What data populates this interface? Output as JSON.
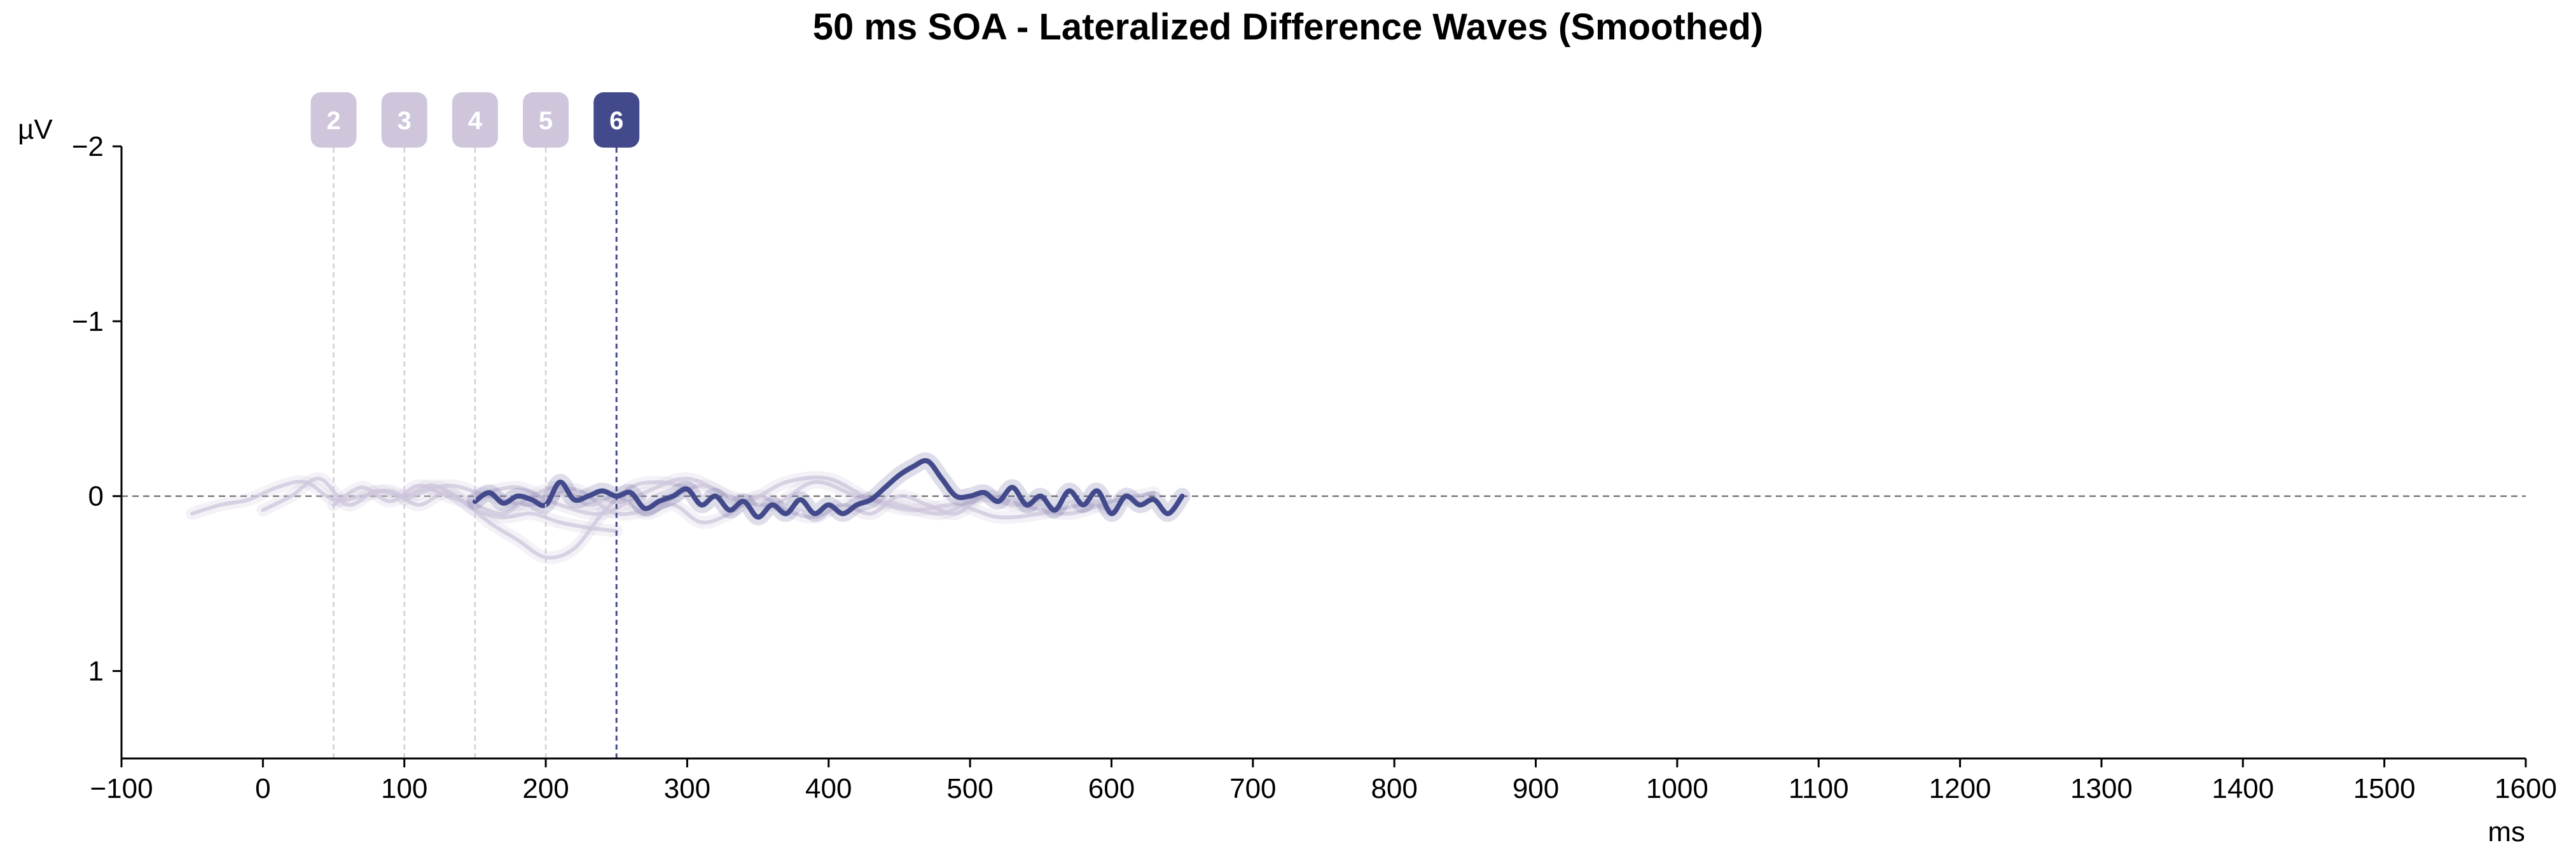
{
  "chart_data": {
    "type": "line",
    "title": "50 ms SOA - Lateralized Difference Waves (Smoothed)",
    "xlabel": "ms",
    "ylabel": "µV",
    "xlim": [
      -100,
      1600
    ],
    "ylim": [
      1.5,
      -2
    ],
    "y_inverted": true,
    "x_ticks": [
      -100,
      0,
      100,
      200,
      300,
      400,
      500,
      600,
      700,
      800,
      900,
      1000,
      1100,
      1200,
      1300,
      1400,
      1500,
      1600
    ],
    "x_tick_labels": [
      "−100",
      "0",
      "100",
      "200",
      "300",
      "400",
      "500",
      "600",
      "700",
      "800",
      "900",
      "1000",
      "1100",
      "1200",
      "1300",
      "1400",
      "1500",
      "1600"
    ],
    "y_ticks": [
      -2,
      -1,
      0,
      1
    ],
    "y_tick_labels": [
      "−2",
      "−1",
      "0",
      "1"
    ],
    "zero_line": true,
    "grid": false,
    "highlight_color": "#434a8c",
    "faded_color": "#cfc6dc",
    "markers": [
      {
        "label": "2",
        "x": 50,
        "active": false
      },
      {
        "label": "3",
        "x": 100,
        "active": false
      },
      {
        "label": "4",
        "x": 150,
        "active": false
      },
      {
        "label": "5",
        "x": 200,
        "active": false
      },
      {
        "label": "6",
        "x": 250,
        "active": true
      }
    ],
    "series": [
      {
        "highlight": false,
        "x": [
          -50,
          -30,
          -10,
          10,
          30,
          50,
          70,
          90,
          110,
          130,
          150,
          170,
          190,
          210,
          230,
          250
        ],
        "y": [
          0.1,
          0.05,
          0.02,
          -0.05,
          -0.08,
          0.02,
          0.0,
          -0.03,
          0.05,
          -0.02,
          0.08,
          0.12,
          0.1,
          0.15,
          0.18,
          0.2
        ]
      },
      {
        "highlight": false,
        "x": [
          0,
          20,
          40,
          60,
          80,
          100,
          120,
          140,
          160,
          180,
          200,
          220,
          240,
          260,
          280,
          300
        ],
        "y": [
          0.08,
          0.0,
          -0.1,
          0.05,
          -0.03,
          0.0,
          -0.06,
          0.02,
          0.15,
          0.25,
          0.35,
          0.3,
          0.1,
          -0.05,
          -0.08,
          -0.05
        ]
      },
      {
        "highlight": false,
        "x": [
          50,
          70,
          90,
          110,
          130,
          150,
          170,
          190,
          210,
          230,
          250,
          270,
          290,
          310,
          330,
          350,
          370,
          390,
          410,
          430,
          450,
          470,
          490,
          510,
          530,
          550
        ],
        "y": [
          0.05,
          -0.05,
          0.03,
          -0.06,
          0.0,
          0.05,
          0.1,
          0.0,
          -0.05,
          0.05,
          0.0,
          0.1,
          0.05,
          0.15,
          0.1,
          0.0,
          0.08,
          0.12,
          0.05,
          0.1,
          0.0,
          0.05,
          0.1,
          0.0,
          0.05,
          0.02
        ]
      },
      {
        "highlight": false,
        "x": [
          100,
          130,
          160,
          190,
          220,
          250,
          280,
          310,
          340,
          370,
          400,
          430,
          460,
          490,
          520,
          550,
          580,
          600
        ],
        "y": [
          0.02,
          -0.06,
          0.0,
          0.05,
          -0.04,
          0.1,
          0.05,
          -0.06,
          0.03,
          -0.08,
          -0.1,
          0.02,
          0.08,
          0.05,
          0.12,
          0.1,
          0.05,
          0.08
        ]
      },
      {
        "highlight": false,
        "x": [
          150,
          180,
          210,
          240,
          270,
          300,
          330,
          360,
          390,
          420,
          450,
          480,
          510,
          540,
          570,
          600,
          630
        ],
        "y": [
          0.0,
          -0.05,
          0.05,
          0.1,
          -0.02,
          -0.1,
          0.0,
          0.05,
          -0.08,
          0.0,
          0.05,
          0.1,
          0.0,
          0.06,
          0.1,
          0.03,
          -0.02
        ]
      },
      {
        "highlight": true,
        "x": [
          150,
          160,
          170,
          180,
          190,
          200,
          210,
          220,
          230,
          240,
          250,
          260,
          270,
          280,
          290,
          300,
          310,
          320,
          330,
          340,
          350,
          360,
          370,
          380,
          390,
          400,
          410,
          420,
          430,
          440,
          450,
          460,
          470,
          480,
          490,
          500,
          510,
          520,
          530,
          540,
          550,
          560,
          570,
          580,
          590,
          600,
          610,
          620,
          630,
          640,
          650
        ],
        "y": [
          0.03,
          -0.02,
          0.04,
          0.0,
          0.02,
          0.05,
          -0.08,
          0.02,
          0.0,
          -0.03,
          0.0,
          -0.02,
          0.07,
          0.03,
          0.0,
          -0.04,
          0.05,
          0.0,
          0.08,
          0.03,
          0.12,
          0.05,
          0.1,
          0.02,
          0.1,
          0.05,
          0.1,
          0.05,
          0.02,
          -0.05,
          -0.12,
          -0.17,
          -0.2,
          -0.1,
          0.0,
          0.0,
          -0.02,
          0.03,
          -0.05,
          0.05,
          0.0,
          0.08,
          -0.03,
          0.05,
          -0.03,
          0.1,
          0.0,
          0.05,
          0.02,
          0.1,
          0.0
        ]
      }
    ]
  }
}
